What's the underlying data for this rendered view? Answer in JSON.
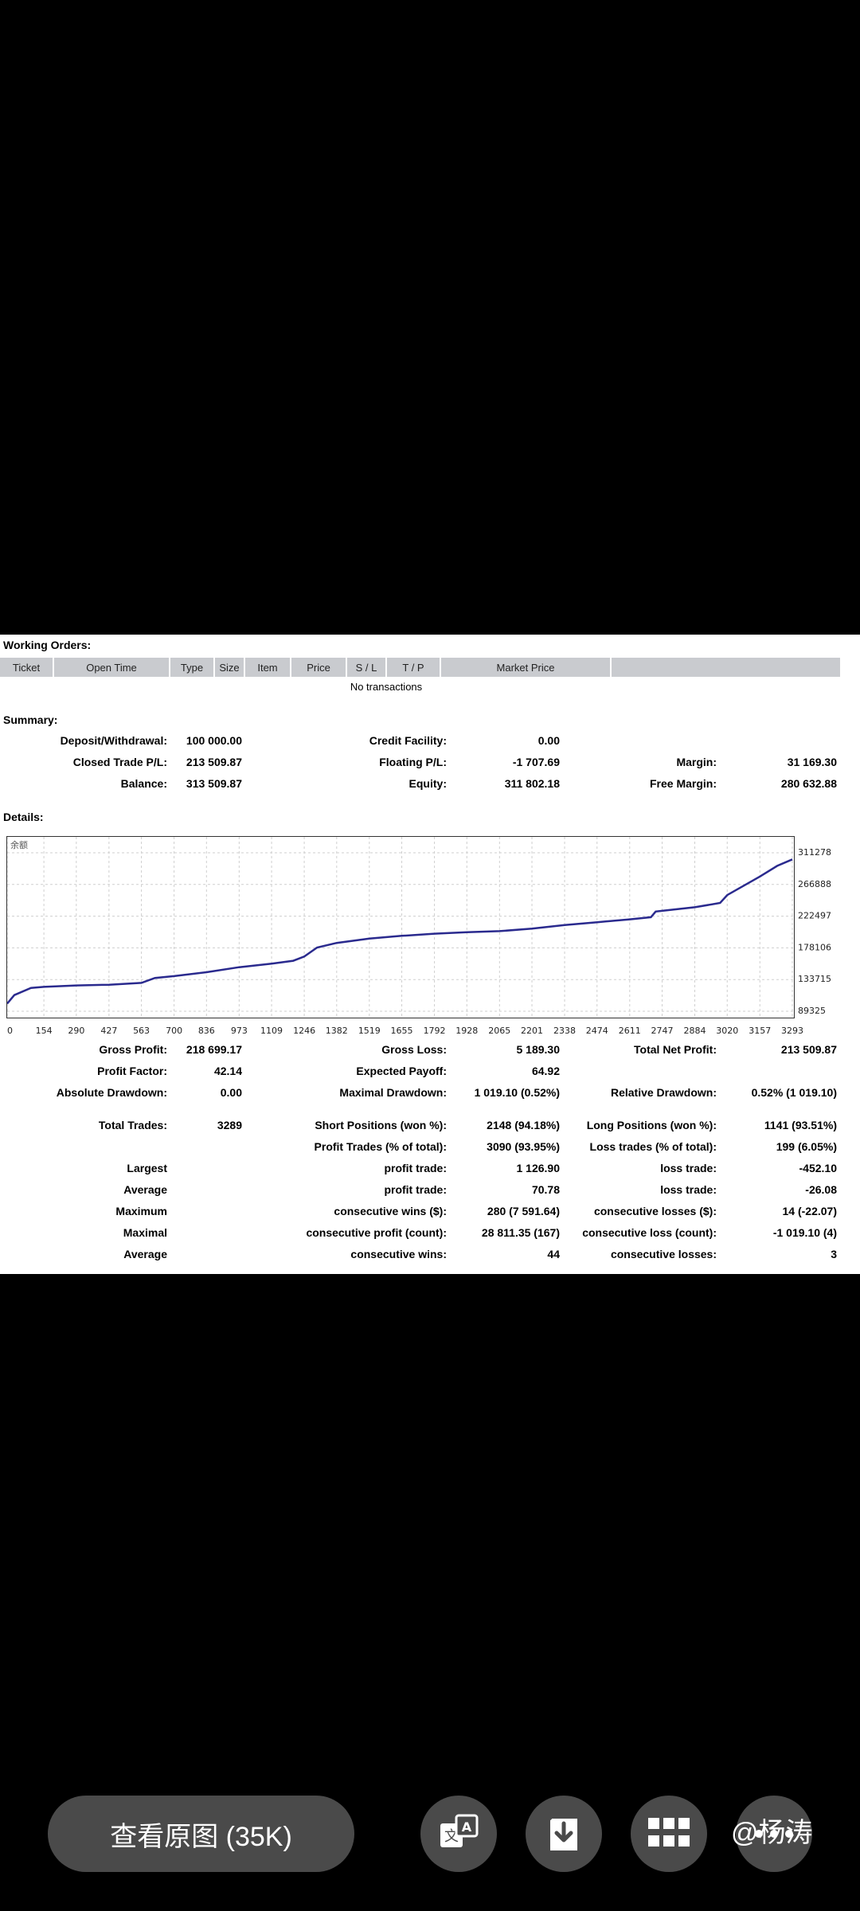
{
  "working_orders": {
    "title": "Working Orders:",
    "columns": [
      "Ticket",
      "Open Time",
      "Type",
      "Size",
      "Item",
      "Price",
      "S / L",
      "T / P",
      "Market Price"
    ],
    "empty_text": "No transactions"
  },
  "summary": {
    "title": "Summary:",
    "deposit_label": "Deposit/Withdrawal:",
    "deposit_value": "100 000.00",
    "credit_label": "Credit Facility:",
    "credit_value": "0.00",
    "closed_label": "Closed Trade P/L:",
    "closed_value": "213 509.87",
    "floating_label": "Floating P/L:",
    "floating_value": "-1 707.69",
    "margin_label": "Margin:",
    "margin_value": "31 169.30",
    "balance_label": "Balance:",
    "balance_value": "313 509.87",
    "equity_label": "Equity:",
    "equity_value": "311 802.18",
    "free_margin_label": "Free Margin:",
    "free_margin_value": "280 632.88"
  },
  "details": {
    "title": "Details:",
    "stats": {
      "gross_profit_label": "Gross Profit:",
      "gross_profit_value": "218 699.17",
      "gross_loss_label": "Gross Loss:",
      "gross_loss_value": "5 189.30",
      "total_net_label": "Total Net Profit:",
      "total_net_value": "213 509.87",
      "profit_factor_label": "Profit Factor:",
      "profit_factor_value": "42.14",
      "expected_payoff_label": "Expected Payoff:",
      "expected_payoff_value": "64.92",
      "abs_dd_label": "Absolute Drawdown:",
      "abs_dd_value": "0.00",
      "max_dd_label": "Maximal Drawdown:",
      "max_dd_value": "1 019.10 (0.52%)",
      "rel_dd_label": "Relative Drawdown:",
      "rel_dd_value": "0.52% (1 019.10)",
      "total_trades_label": "Total Trades:",
      "total_trades_value": "3289",
      "short_label": "Short Positions (won %):",
      "short_value": "2148 (94.18%)",
      "long_label": "Long Positions (won %):",
      "long_value": "1141 (93.51%)",
      "profit_trades_label": "Profit Trades (% of total):",
      "profit_trades_value": "3090 (93.95%)",
      "loss_trades_label": "Loss trades (% of total):",
      "loss_trades_value": "199 (6.05%)",
      "largest_label": "Largest",
      "largest_profit_label": "profit trade:",
      "largest_profit_value": "1 126.90",
      "largest_loss_label": "loss trade:",
      "largest_loss_value": "-452.10",
      "average_label": "Average",
      "average_profit_label": "profit trade:",
      "average_profit_value": "70.78",
      "average_loss_label": "loss trade:",
      "average_loss_value": "-26.08",
      "maximum_label": "Maximum",
      "max_wins_label": "consecutive wins ($):",
      "max_wins_value": "280 (7 591.64)",
      "max_losses_label": "consecutive losses ($):",
      "max_losses_value": "14 (-22.07)",
      "maximal_label": "Maximal",
      "maximal_profit_label": "consecutive profit (count):",
      "maximal_profit_value": "28 811.35 (167)",
      "maximal_loss_label": "consecutive loss (count):",
      "maximal_loss_value": "-1 019.10 (4)",
      "average2_label": "Average",
      "avg_wins_label": "consecutive wins:",
      "avg_wins_value": "44",
      "avg_losses_label": "consecutive losses:",
      "avg_losses_value": "3"
    }
  },
  "chart_data": {
    "type": "line",
    "legend": "余额",
    "x_ticks": [
      "0",
      "154",
      "290",
      "427",
      "563",
      "700",
      "836",
      "973",
      "1109",
      "1246",
      "1382",
      "1519",
      "1655",
      "1792",
      "1928",
      "2065",
      "2201",
      "2338",
      "2474",
      "2611",
      "2747",
      "2884",
      "3020",
      "3157",
      "3293"
    ],
    "y_ticks": [
      "311278",
      "266888",
      "222497",
      "178106",
      "133715",
      "89325"
    ],
    "ylim": [
      89325,
      311278
    ],
    "xlim": [
      0,
      3293
    ],
    "grid": true,
    "series": [
      {
        "name": "余额",
        "color": "#2a2a8e",
        "x": [
          0,
          30,
          100,
          154,
          290,
          427,
          563,
          620,
          700,
          836,
          973,
          1109,
          1200,
          1246,
          1300,
          1382,
          1519,
          1655,
          1792,
          1928,
          2065,
          2201,
          2338,
          2474,
          2611,
          2700,
          2720,
          2747,
          2884,
          2990,
          3020,
          3157,
          3230,
          3293
        ],
        "y": [
          100000,
          112000,
          122000,
          123500,
          125500,
          126500,
          129000,
          136000,
          138500,
          144000,
          151000,
          156000,
          160000,
          166000,
          178500,
          185000,
          191000,
          195000,
          198000,
          200000,
          201500,
          205000,
          210000,
          214000,
          218000,
          221000,
          229000,
          230000,
          235000,
          241000,
          252000,
          278000,
          293000,
          302000
        ]
      }
    ]
  },
  "bottom_bar": {
    "view_original": "查看原图 (35K)",
    "translate_icon": "translate-icon",
    "download_icon": "download-icon",
    "grid_icon": "grid-icon",
    "more_icon": "more-icon",
    "watermark": "@杨涛"
  }
}
